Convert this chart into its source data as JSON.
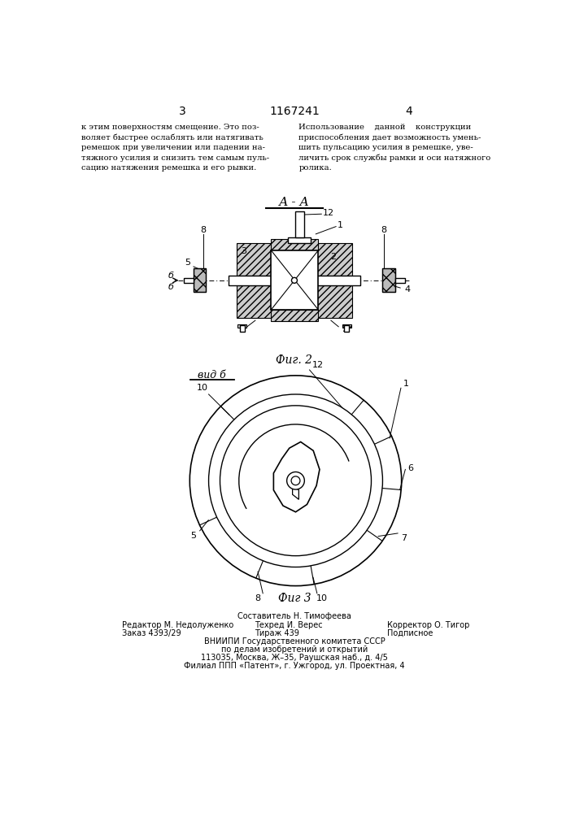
{
  "page_number_left": "3",
  "page_number_right": "4",
  "patent_number": "1167241",
  "text_left": "к этим поверхностям смещение. Это поз-\nволяет быстрее ослаблять или натягивать\nремешок при увеличении или падении на-\nтяжного усилия и снизить тем самым пуль-\nсацию натяжения ремешка и его рывки.",
  "text_right": "Использование    данной    конструкции\nприспособления дает возможность умень-\nшить пульсацию усилия в ремешке, уве-\nличить срок службы рамки и оси натяжного\nролика.",
  "section_label": "А - А",
  "fig2_label": "Фиг. 2",
  "fig3_label": "Фиг 3",
  "vid_label": "вид б",
  "footer_line1": "Составитель Н. Тимофеева",
  "footer_editor": "Редактор М. Недолуженко",
  "footer_tech": "Техред И. Верес",
  "footer_corr": "Корректор О. Тигор",
  "footer_order": "Заказ 4393/29",
  "footer_tirazh": "Тираж 439",
  "footer_podpisnoe": "Подписное",
  "footer_vniipii": "ВНИИПИ Государственного комитета СССР",
  "footer_po_delam": "по делам изобретений и открытий",
  "footer_address": "113035, Москва, Ж–35, Раушская наб., д. 4/5",
  "footer_filial": "Филиал ППП «Патент», г. Ужгород, ул. Проектная, 4",
  "bg_color": "#ffffff",
  "text_color": "#000000"
}
